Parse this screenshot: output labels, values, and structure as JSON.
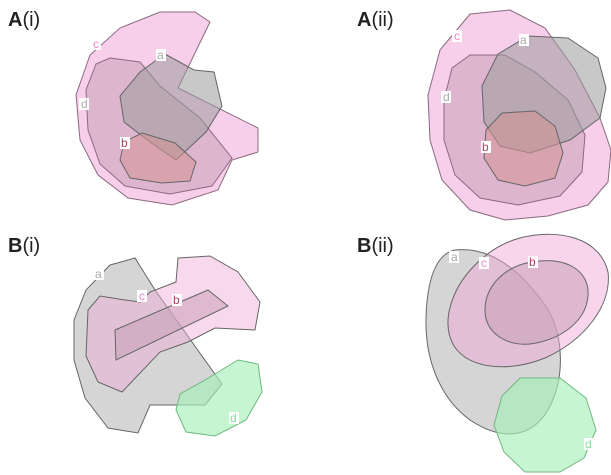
{
  "colors": {
    "pink_fill": "#f0a8d8",
    "pink_stroke": "#8a6a80",
    "gray_fill": "#9a9a9a",
    "gray_stroke": "#666666",
    "inner_fill": "#c8a0b8",
    "red_fill": "#d49494",
    "green_fill": "#a8f0b8",
    "green_stroke": "#70b880",
    "text_gray": "#aaaaaa",
    "text_pink": "#ee88cc",
    "text_green": "#88dd99",
    "text_red": "#aa4466"
  },
  "panels": [
    {
      "letter": "A",
      "numeral": "(i)",
      "labels": {
        "a": "a",
        "b": "b",
        "c": "c",
        "d": "d"
      }
    },
    {
      "letter": "A",
      "numeral": "(ii)",
      "labels": {
        "a": "a",
        "b": "b",
        "c": "c",
        "d": "d"
      }
    },
    {
      "letter": "B",
      "numeral": "(i)",
      "labels": {
        "a": "a",
        "b": "b",
        "c": "c",
        "d": "d"
      }
    },
    {
      "letter": "B",
      "numeral": "(ii)",
      "labels": {
        "a": "a",
        "b": "b",
        "c": "c",
        "d": "d"
      }
    }
  ]
}
